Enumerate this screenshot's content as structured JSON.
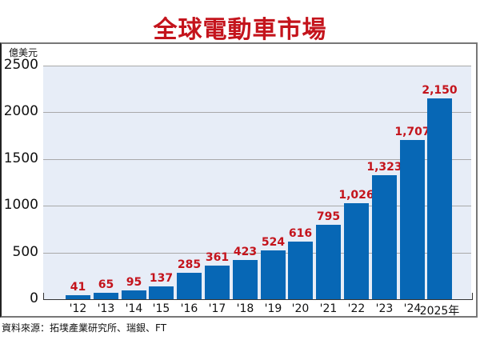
{
  "title": "全球電動車市場",
  "unit": "億美元",
  "source": "資料來源：拓墣產業研究所、瑞銀、FT",
  "colors": {
    "title": "#c4141c",
    "bar": "#0767b5",
    "value_label": "#c4141c",
    "plot_bg": "#e7edf7",
    "grid": "#a9a9a9"
  },
  "y_ticks": [
    "2500",
    "2000",
    "1500",
    "1000",
    "500",
    "0"
  ],
  "bars": [
    {
      "label": "'12",
      "value_label": "41"
    },
    {
      "label": "'13",
      "value_label": "65"
    },
    {
      "label": "'14",
      "value_label": "95"
    },
    {
      "label": "'15",
      "value_label": "137"
    },
    {
      "label": "'16",
      "value_label": "285"
    },
    {
      "label": "'17",
      "value_label": "361"
    },
    {
      "label": "'18",
      "value_label": "423"
    },
    {
      "label": "'19",
      "value_label": "524"
    },
    {
      "label": "'20",
      "value_label": "616"
    },
    {
      "label": "'21",
      "value_label": "795"
    },
    {
      "label": "'22",
      "value_label": "1,026"
    },
    {
      "label": "'23",
      "value_label": "1,323"
    },
    {
      "label": "'24",
      "value_label": "1,707"
    },
    {
      "label": "2025年",
      "value_label": "2,150"
    }
  ],
  "chart_data": {
    "type": "bar",
    "title": "全球電動車市場",
    "categories": [
      "2012",
      "2013",
      "2014",
      "2015",
      "2016",
      "2017",
      "2018",
      "2019",
      "2020",
      "2021",
      "2022",
      "2023",
      "2024",
      "2025"
    ],
    "tick_labels": [
      "'12",
      "'13",
      "'14",
      "'15",
      "'16",
      "'17",
      "'18",
      "'19",
      "'20",
      "'21",
      "'22",
      "'23",
      "'24",
      "2025年"
    ],
    "values": [
      41,
      65,
      95,
      137,
      285,
      361,
      423,
      524,
      616,
      795,
      1026,
      1323,
      1707,
      2150
    ],
    "xlabel": "年",
    "ylabel": "億美元",
    "ylim": [
      0,
      2500
    ],
    "yticks": [
      0,
      500,
      1000,
      1500,
      2000,
      2500
    ],
    "grid": true,
    "legend": null,
    "data_labels": true,
    "source": "資料來源：拓墣產業研究所、瑞銀、FT"
  }
}
